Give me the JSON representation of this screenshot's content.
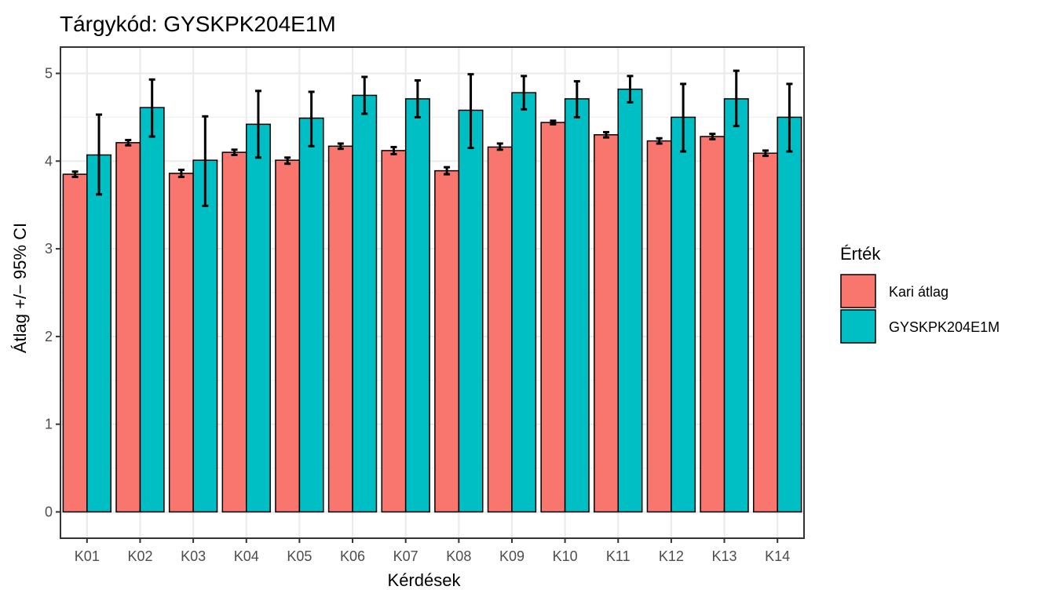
{
  "chart_data": {
    "type": "bar",
    "title": "Tárgykód:  GYSKPK204E1M",
    "xlabel": "Kérdések",
    "ylabel": "Átlag +/− 95% CI",
    "categories": [
      "K01",
      "K02",
      "K03",
      "K04",
      "K05",
      "K06",
      "K07",
      "K08",
      "K09",
      "K10",
      "K11",
      "K12",
      "K13",
      "K14"
    ],
    "ylim": [
      -0.3,
      5.3
    ],
    "yticks": [
      0,
      1,
      2,
      3,
      4,
      5
    ],
    "grid": true,
    "series": [
      {
        "name": "Kari átlag",
        "color": "#F8766D",
        "values": [
          3.85,
          4.21,
          3.86,
          4.1,
          4.01,
          4.17,
          4.12,
          3.89,
          4.16,
          4.44,
          4.3,
          4.23,
          4.28,
          4.09
        ],
        "ci_low": [
          3.82,
          4.18,
          3.82,
          4.07,
          3.97,
          4.14,
          4.08,
          3.85,
          4.13,
          4.42,
          4.27,
          4.2,
          4.25,
          4.06
        ],
        "ci_high": [
          3.88,
          4.24,
          3.9,
          4.13,
          4.04,
          4.2,
          4.16,
          3.93,
          4.2,
          4.46,
          4.33,
          4.26,
          4.31,
          4.12
        ]
      },
      {
        "name": "GYSKPK204E1M",
        "color": "#00BFC4",
        "values": [
          4.07,
          4.61,
          4.01,
          4.42,
          4.49,
          4.75,
          4.71,
          4.58,
          4.78,
          4.71,
          4.82,
          4.5,
          4.71,
          4.5
        ],
        "ci_low": [
          3.62,
          4.28,
          3.49,
          4.04,
          4.17,
          4.54,
          4.5,
          4.15,
          4.59,
          4.5,
          4.67,
          4.11,
          4.4,
          4.11
        ],
        "ci_high": [
          4.53,
          4.93,
          4.51,
          4.8,
          4.79,
          4.96,
          4.92,
          4.99,
          4.97,
          4.91,
          4.97,
          4.88,
          5.03,
          4.88
        ]
      }
    ],
    "legend": {
      "title": "Érték",
      "placement": "right"
    }
  }
}
